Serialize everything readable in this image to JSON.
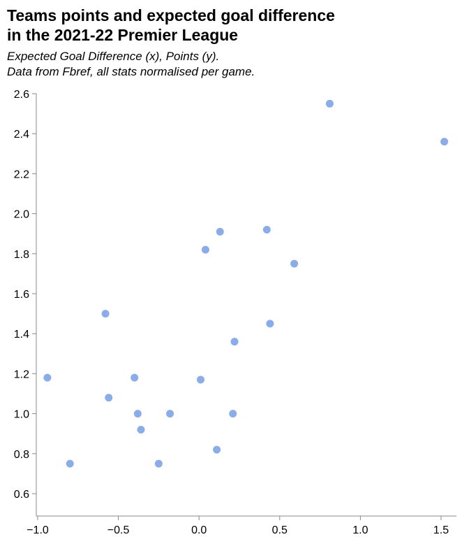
{
  "chart_data": {
    "type": "scatter",
    "title": [
      "Teams points and expected goal difference",
      "in the 2021-22 Premier League"
    ],
    "subtitle": [
      "Expected Goal Difference (x), Points (y).",
      "Data from Fbref, all stats normalised per game."
    ],
    "xlabel": "",
    "ylabel": "",
    "xlim": [
      -1.0,
      1.5
    ],
    "ylim": [
      0.6,
      2.6
    ],
    "x_ticks": [
      "−1.0",
      "−0.5",
      "0.0",
      "0.5",
      "1.0",
      "1.5"
    ],
    "y_ticks": [
      "0.6",
      "0.8",
      "1.0",
      "1.2",
      "1.4",
      "1.6",
      "1.8",
      "2.0",
      "2.2",
      "2.4",
      "2.6"
    ],
    "grid": false,
    "point_color": "#4c7fdc",
    "points": [
      {
        "x": 0.81,
        "y": 2.55
      },
      {
        "x": 1.52,
        "y": 2.36
      },
      {
        "x": 0.42,
        "y": 1.92
      },
      {
        "x": 0.13,
        "y": 1.91
      },
      {
        "x": 0.04,
        "y": 1.82
      },
      {
        "x": 0.59,
        "y": 1.75
      },
      {
        "x": -0.58,
        "y": 1.5
      },
      {
        "x": 0.44,
        "y": 1.45
      },
      {
        "x": 0.22,
        "y": 1.36
      },
      {
        "x": -0.94,
        "y": 1.18
      },
      {
        "x": -0.4,
        "y": 1.18
      },
      {
        "x": 0.01,
        "y": 1.17
      },
      {
        "x": -0.56,
        "y": 1.08
      },
      {
        "x": -0.38,
        "y": 1.0
      },
      {
        "x": -0.18,
        "y": 1.0
      },
      {
        "x": 0.21,
        "y": 1.0
      },
      {
        "x": -0.36,
        "y": 0.92
      },
      {
        "x": 0.11,
        "y": 0.82
      },
      {
        "x": -0.8,
        "y": 0.75
      },
      {
        "x": -0.25,
        "y": 0.75
      }
    ]
  }
}
